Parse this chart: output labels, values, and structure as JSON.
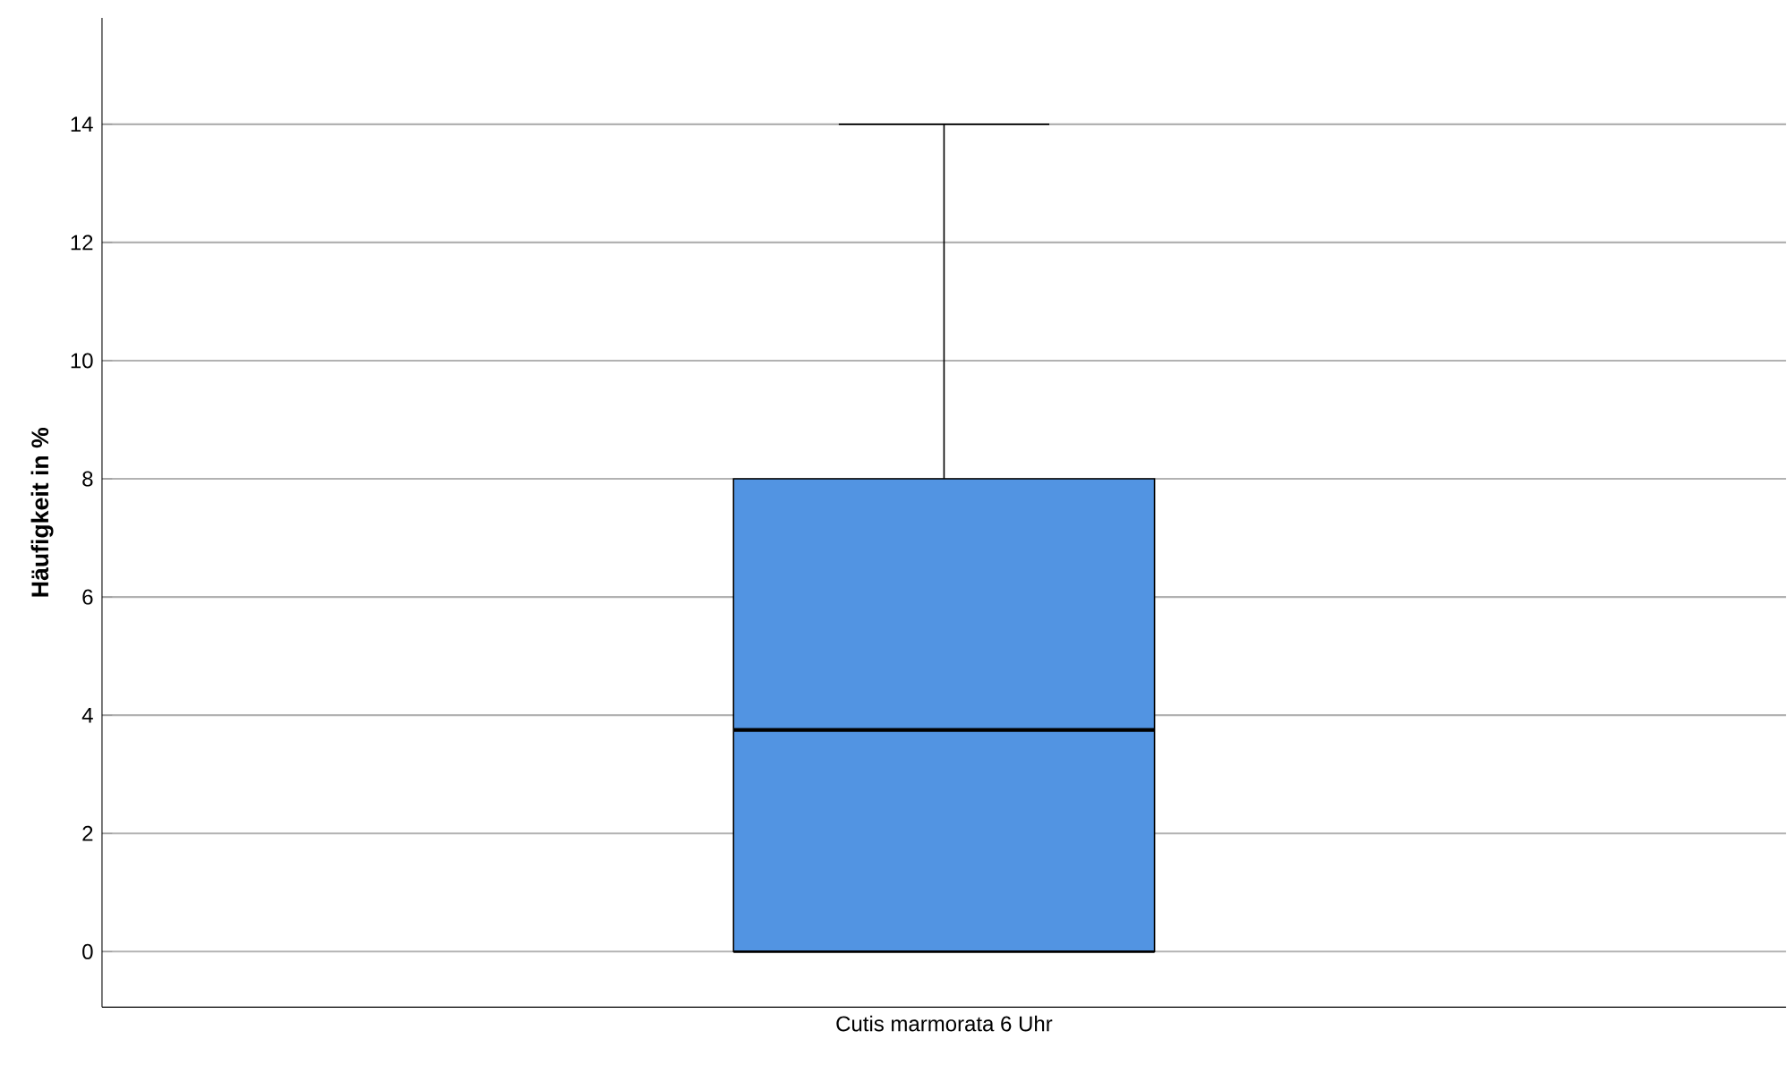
{
  "chart_data": {
    "type": "box",
    "ylabel": "Häufigkeit in %",
    "categories": [
      "Cutis marmorata 6 Uhr"
    ],
    "boxes": [
      {
        "low": 0,
        "q1": 0,
        "median": 3.75,
        "q3": 8,
        "high": 14
      }
    ],
    "color": "#5294e2",
    "ylim": [
      -0.94,
      15.8
    ],
    "yticks": [
      0,
      2,
      4,
      6,
      8,
      10,
      12,
      14
    ],
    "grid": "y"
  }
}
